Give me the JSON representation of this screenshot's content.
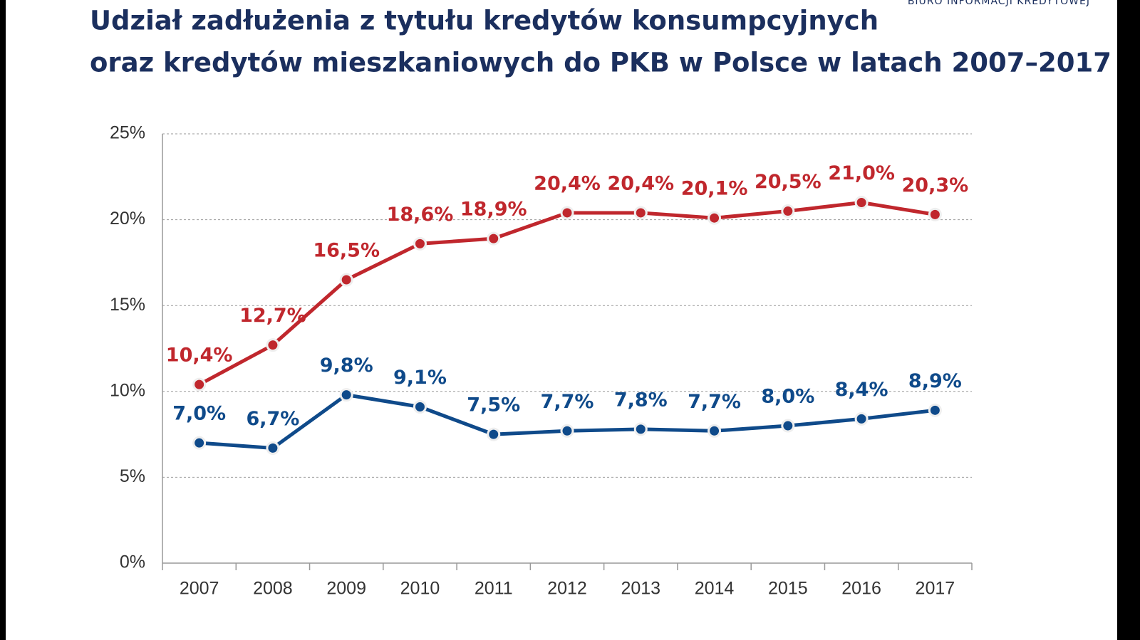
{
  "chart_data": {
    "type": "line",
    "logo_text": "BIURO INFORMACJI KREDYTOWEJ",
    "title": [
      "Udział zadłużenia z tytułu kredytów konsumpcyjnych",
      "oraz kredytów mieszkaniowych do PKB w Polsce w latach 2007–2017"
    ],
    "categories": [
      "2007",
      "2008",
      "2009",
      "2010",
      "2011",
      "2012",
      "2013",
      "2014",
      "2015",
      "2016",
      "2017"
    ],
    "series": [
      {
        "color": "#c0272d",
        "values": [
          10.4,
          12.7,
          16.5,
          18.6,
          18.9,
          20.4,
          20.4,
          20.1,
          20.5,
          21.0,
          20.3
        ],
        "value_labels": [
          "10,4%",
          "12,7%",
          "16,5%",
          "18,6%",
          "18,9%",
          "20,4%",
          "20,4%",
          "20,1%",
          "20,5%",
          "21,0%",
          "20,3%"
        ]
      },
      {
        "color": "#0f4a8a",
        "values": [
          7.0,
          6.7,
          9.8,
          9.1,
          7.5,
          7.7,
          7.8,
          7.7,
          8.0,
          8.4,
          8.9
        ],
        "value_labels": [
          "7,0%",
          "6,7%",
          "9,8%",
          "9,1%",
          "7,5%",
          "7,7%",
          "7,8%",
          "7,7%",
          "8,0%",
          "8,4%",
          "8,9%"
        ]
      }
    ],
    "ylim": [
      0,
      25
    ],
    "yticks": [
      {
        "value": 0,
        "label": "0%"
      },
      {
        "value": 5,
        "label": "5%"
      },
      {
        "value": 10,
        "label": "10%"
      },
      {
        "value": 15,
        "label": "15%"
      },
      {
        "value": 20,
        "label": "20%"
      },
      {
        "value": 25,
        "label": "25%"
      }
    ],
    "grid": true
  }
}
